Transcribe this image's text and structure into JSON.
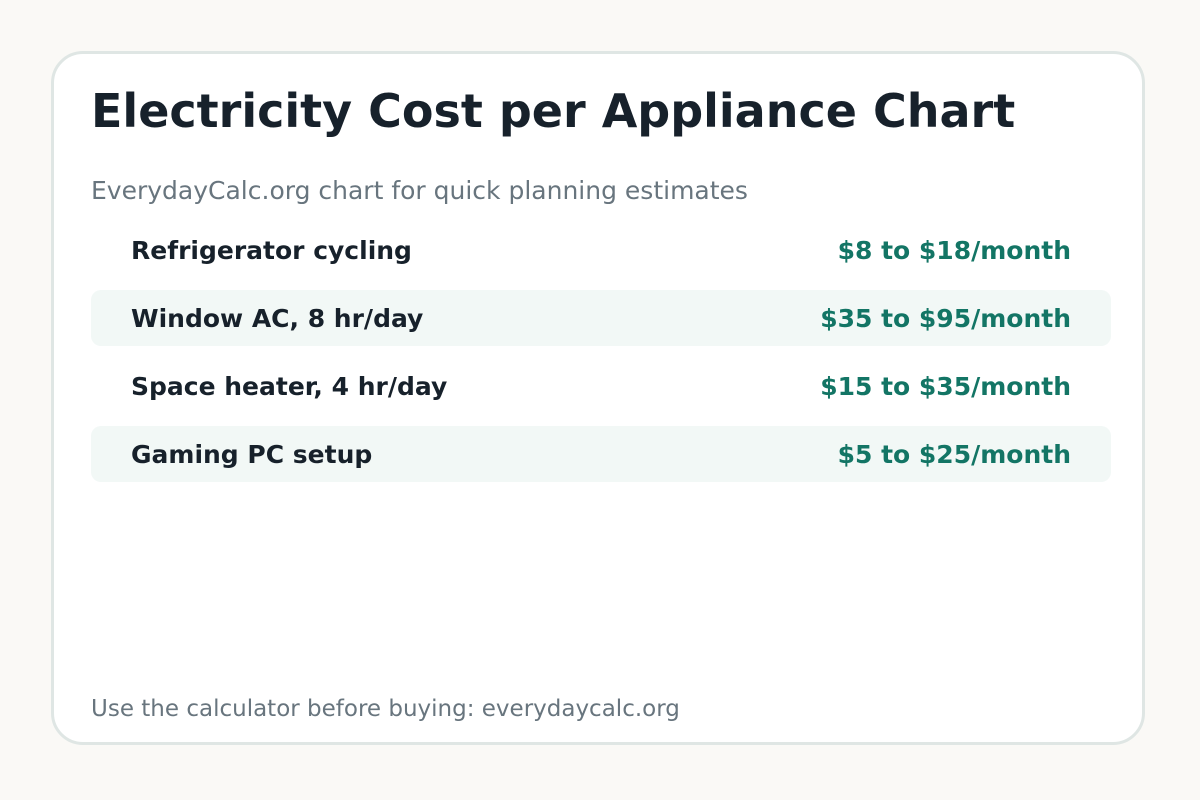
{
  "header": {
    "title": "Electricity Cost per Appliance Chart",
    "subtitle": "EverydayCalc.org chart for quick planning estimates"
  },
  "rows": [
    {
      "label": "Refrigerator cycling",
      "value": "$8 to $18/month"
    },
    {
      "label": "Window AC, 8 hr/day",
      "value": "$35 to $95/month"
    },
    {
      "label": "Space heater, 4 hr/day",
      "value": "$15 to $35/month"
    },
    {
      "label": "Gaming PC setup",
      "value": "$5 to $25/month"
    }
  ],
  "footer": {
    "text": "Use the calculator before buying: everydaycalc.org"
  },
  "colors": {
    "background": "#faf9f6",
    "card": "#ffffff",
    "border": "#dfe6e4",
    "text_dark": "#17212b",
    "text_muted": "#68757e",
    "accent": "#137565",
    "row_shade": "#f2f8f6"
  }
}
